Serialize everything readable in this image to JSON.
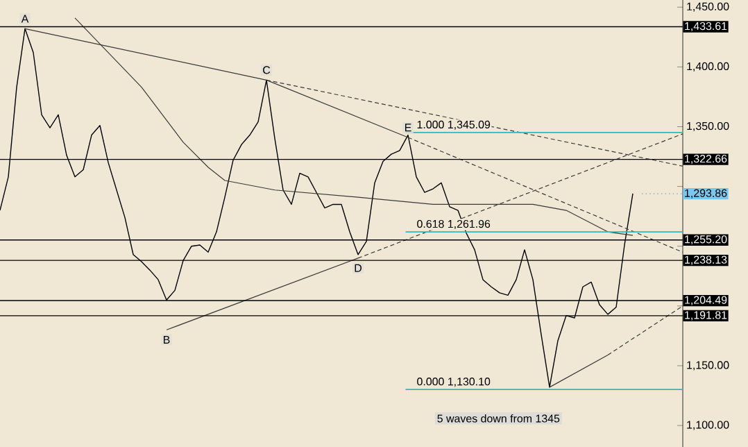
{
  "chart_data": {
    "type": "line",
    "categories": [
      null,
      null,
      null,
      null,
      null,
      null,
      null,
      null,
      null,
      null,
      null,
      null,
      null,
      null,
      null,
      null,
      null,
      null,
      null,
      null,
      null,
      null,
      null,
      null,
      null,
      null,
      null,
      null,
      null,
      null,
      null,
      null,
      null,
      null,
      null,
      null,
      null,
      null,
      null,
      null,
      null,
      null,
      null,
      null,
      null,
      null,
      null,
      null,
      null,
      null,
      null,
      null,
      null,
      null,
      null,
      null,
      null,
      null,
      null,
      null,
      null,
      null,
      null,
      null,
      null,
      null,
      null,
      null,
      null,
      null,
      null,
      null,
      null,
      null,
      null,
      null,
      null,
      null,
      null,
      null,
      null,
      null,
      null
    ],
    "series": [
      {
        "color": "#000000",
        "line_style": "solid",
        "values": [
          1280,
          1308,
          1383,
          1432,
          1412,
          1360,
          1349,
          1360,
          1326,
          1308,
          1314,
          1343,
          1351,
          1320,
          1297,
          1274,
          1243,
          1237,
          1230,
          1222,
          1205,
          1213,
          1238,
          1250,
          1251,
          1245,
          1262,
          1291,
          1322,
          1335,
          1343,
          1354,
          1389,
          1340,
          1297,
          1285,
          1311,
          1308,
          1295,
          1282,
          1285,
          1285,
          1262,
          1243,
          1254,
          1303,
          1321,
          1327,
          1330,
          1343,
          1308,
          1295,
          1298,
          1303,
          1283,
          1280,
          1261,
          1247,
          1222,
          1216,
          1211,
          1209,
          1222,
          1247,
          1222,
          1176,
          1132,
          1171,
          1192,
          1190,
          1216,
          1220,
          1201,
          1193,
          1199,
          1251,
          1294,
          null,
          null,
          null,
          null,
          null,
          null
        ]
      },
      {
        "color": "#3a3a3a",
        "line_style": "solid",
        "values": [
          null,
          null,
          null,
          null,
          null,
          null,
          null,
          null,
          null,
          1441,
          null,
          null,
          null,
          null,
          null,
          null,
          null,
          1383,
          null,
          null,
          null,
          null,
          1337,
          null,
          null,
          1316,
          null,
          1305,
          null,
          null,
          null,
          null,
          null,
          1297,
          null,
          null,
          null,
          null,
          null,
          null,
          null,
          null,
          null,
          1291,
          null,
          null,
          null,
          null,
          null,
          null,
          null,
          null,
          1285,
          null,
          null,
          null,
          null,
          null,
          null,
          null,
          null,
          null,
          null,
          null,
          1285,
          null,
          null,
          null,
          1280,
          null,
          null,
          null,
          null,
          1262,
          null,
          null,
          1259,
          null,
          null,
          null,
          null,
          null,
          null
        ]
      },
      {
        "color": "#3a3a3a",
        "line_style": "solid",
        "values": [
          null,
          null,
          null,
          1432,
          null,
          null,
          null,
          null,
          null,
          null,
          null,
          null,
          null,
          null,
          null,
          null,
          null,
          null,
          null,
          null,
          null,
          null,
          null,
          null,
          null,
          null,
          null,
          null,
          null,
          null,
          null,
          null,
          1389,
          null,
          null,
          null,
          null,
          null,
          null,
          null,
          null,
          null,
          null,
          null,
          null,
          null,
          null,
          null,
          null,
          1341,
          null,
          null,
          null,
          null,
          null,
          null,
          null,
          null,
          null,
          null,
          null,
          null,
          null,
          null,
          null,
          null,
          null,
          null,
          null,
          null,
          null,
          null,
          null,
          null,
          null,
          null,
          null,
          null,
          null,
          null,
          null,
          null,
          null
        ]
      },
      {
        "color": "#3a3a3a",
        "line_style": "dashed",
        "values": [
          null,
          null,
          null,
          null,
          null,
          null,
          null,
          null,
          null,
          null,
          null,
          null,
          null,
          null,
          null,
          null,
          null,
          null,
          null,
          null,
          null,
          null,
          null,
          null,
          null,
          null,
          null,
          null,
          null,
          null,
          null,
          null,
          1389,
          null,
          null,
          null,
          null,
          null,
          null,
          null,
          null,
          null,
          null,
          null,
          null,
          null,
          null,
          null,
          null,
          null,
          null,
          null,
          null,
          null,
          null,
          null,
          null,
          null,
          null,
          null,
          null,
          null,
          null,
          null,
          null,
          null,
          null,
          null,
          null,
          null,
          null,
          null,
          null,
          null,
          null,
          null,
          null,
          null,
          null,
          null,
          null,
          null,
          1317
        ]
      },
      {
        "color": "#3a3a3a",
        "line_style": "dashed",
        "values": [
          null,
          null,
          null,
          null,
          null,
          null,
          null,
          null,
          null,
          null,
          null,
          null,
          null,
          null,
          null,
          null,
          null,
          null,
          null,
          null,
          null,
          null,
          null,
          null,
          null,
          null,
          null,
          null,
          null,
          null,
          null,
          null,
          null,
          null,
          null,
          null,
          null,
          null,
          null,
          null,
          null,
          null,
          null,
          null,
          null,
          null,
          null,
          null,
          null,
          1341,
          null,
          null,
          null,
          null,
          null,
          null,
          null,
          null,
          null,
          null,
          null,
          null,
          null,
          null,
          null,
          null,
          null,
          null,
          null,
          null,
          null,
          null,
          null,
          null,
          null,
          null,
          null,
          null,
          null,
          null,
          null,
          null,
          1245
        ]
      },
      {
        "color": "#3a3a3a",
        "line_style": "solid",
        "values": [
          null,
          null,
          null,
          null,
          null,
          null,
          null,
          null,
          null,
          null,
          null,
          null,
          null,
          null,
          null,
          null,
          null,
          null,
          null,
          null,
          1180,
          null,
          null,
          null,
          null,
          null,
          null,
          null,
          null,
          null,
          null,
          null,
          null,
          null,
          null,
          null,
          null,
          null,
          null,
          null,
          null,
          null,
          null,
          1240,
          null,
          null,
          null,
          null,
          null,
          null,
          null,
          null,
          null,
          null,
          null,
          null,
          null,
          null,
          null,
          null,
          null,
          null,
          null,
          null,
          null,
          null,
          null,
          null,
          null,
          null,
          null,
          null,
          null,
          null,
          null,
          null,
          null,
          null,
          null,
          null,
          null,
          null,
          null
        ]
      },
      {
        "color": "#3a3a3a",
        "line_style": "dashed",
        "values": [
          null,
          null,
          null,
          null,
          null,
          null,
          null,
          null,
          null,
          null,
          null,
          null,
          null,
          null,
          null,
          null,
          null,
          null,
          null,
          null,
          null,
          null,
          null,
          null,
          null,
          null,
          null,
          null,
          null,
          null,
          null,
          null,
          null,
          null,
          null,
          null,
          null,
          null,
          null,
          null,
          null,
          null,
          null,
          1240,
          null,
          null,
          null,
          null,
          null,
          null,
          null,
          null,
          null,
          null,
          null,
          null,
          null,
          null,
          null,
          null,
          null,
          null,
          null,
          null,
          null,
          null,
          null,
          null,
          null,
          null,
          null,
          null,
          null,
          null,
          null,
          null,
          null,
          null,
          null,
          null,
          null,
          null,
          1344
        ]
      },
      {
        "color": "#3a3a3a",
        "line_style": "solid",
        "values": [
          null,
          null,
          null,
          null,
          null,
          null,
          null,
          null,
          null,
          null,
          null,
          null,
          null,
          null,
          null,
          null,
          null,
          null,
          null,
          null,
          null,
          null,
          null,
          null,
          null,
          null,
          null,
          null,
          null,
          null,
          null,
          null,
          null,
          null,
          null,
          null,
          null,
          null,
          null,
          null,
          null,
          null,
          null,
          null,
          null,
          null,
          null,
          null,
          null,
          null,
          null,
          null,
          null,
          null,
          null,
          null,
          null,
          null,
          null,
          null,
          null,
          null,
          null,
          null,
          null,
          null,
          1132,
          null,
          null,
          null,
          null,
          null,
          null,
          1159,
          null,
          null,
          null,
          null,
          null,
          null,
          null,
          null,
          null
        ]
      },
      {
        "color": "#3a3a3a",
        "line_style": "dashed",
        "values": [
          null,
          null,
          null,
          null,
          null,
          null,
          null,
          null,
          null,
          null,
          null,
          null,
          null,
          null,
          null,
          null,
          null,
          null,
          null,
          null,
          null,
          null,
          null,
          null,
          null,
          null,
          null,
          null,
          null,
          null,
          null,
          null,
          null,
          null,
          null,
          null,
          null,
          null,
          null,
          null,
          null,
          null,
          null,
          null,
          null,
          null,
          null,
          null,
          null,
          null,
          null,
          null,
          null,
          null,
          null,
          null,
          null,
          null,
          null,
          null,
          null,
          null,
          null,
          null,
          null,
          null,
          null,
          null,
          null,
          null,
          null,
          null,
          null,
          1159,
          null,
          null,
          null,
          null,
          null,
          null,
          null,
          null,
          1200
        ]
      }
    ],
    "ylim": [
      1082,
      1456
    ],
    "yticks": [
      {
        "value": 1100,
        "label": "1,100.00"
      },
      {
        "value": 1150,
        "label": "1,150.00"
      },
      {
        "value": 1200,
        "label": null
      },
      {
        "value": 1250,
        "label": null
      },
      {
        "value": 1300,
        "label": null
      },
      {
        "value": 1350,
        "label": "1,350.00"
      },
      {
        "value": 1400,
        "label": "1,400.00"
      },
      {
        "value": 1450,
        "label": "1,450.00"
      }
    ],
    "ref_lines": [
      {
        "axis": "y",
        "value": 1433.61,
        "label": "1,433.61",
        "color": "#000000"
      },
      {
        "axis": "y",
        "value": 1322.66,
        "label": "1,322.66",
        "color": "#000000"
      },
      {
        "axis": "y",
        "value": 1255.2,
        "label": "1,255.20",
        "color": "#000000"
      },
      {
        "axis": "y",
        "value": 1238.13,
        "label": "1,238.13",
        "color": "#000000"
      },
      {
        "axis": "y",
        "value": 1204.49,
        "label": "1,204.49",
        "color": "#000000"
      },
      {
        "axis": "y",
        "value": 1191.81,
        "label": "1,191.81",
        "color": "#000000"
      },
      {
        "axis": "y",
        "value": 1345.09,
        "label": "1.000 1,345.09",
        "color": "#3cb4b4"
      },
      {
        "axis": "y",
        "value": 1261.96,
        "label": "0.618 1,261.96",
        "color": "#3cb4b4"
      },
      {
        "axis": "y",
        "value": 1130.1,
        "label": "0.000 1,130.10",
        "color": "#3cb4b4"
      },
      {
        "axis": "y",
        "value": 1293.86,
        "label": "1,293.86",
        "color": "#78c8f0",
        "line_style": "dotted"
      }
    ],
    "annotations": [
      {
        "text": "A",
        "y": 1432
      },
      {
        "text": "B",
        "y": 1180
      },
      {
        "text": "C",
        "y": 1389
      },
      {
        "text": "D",
        "y": 1240
      },
      {
        "text": "E",
        "y": 1341
      },
      "5 waves down from 1345"
    ]
  }
}
